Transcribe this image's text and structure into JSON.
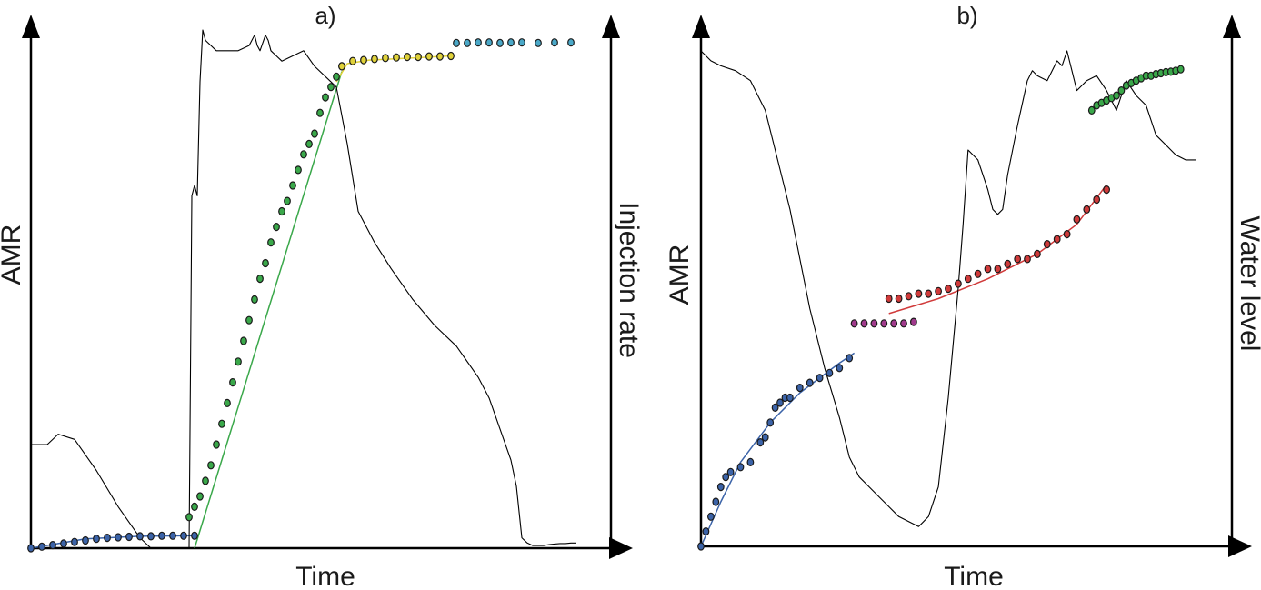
{
  "chart_data": [
    {
      "type": "scatter",
      "title": "a)",
      "xlabel": "Time",
      "ylabel": "AMR",
      "y2label": "Injection rate",
      "xlim": [
        0,
        100
      ],
      "ylim": [
        0,
        100
      ],
      "grid": false,
      "legend": "none",
      "series": [
        {
          "role": "points",
          "color": "#3b63a8",
          "x": [
            0,
            2,
            4,
            6,
            8,
            10,
            12,
            14,
            16,
            18,
            20,
            22,
            24,
            26,
            28,
            30
          ],
          "y": [
            0,
            0.3,
            0.6,
            0.9,
            1.2,
            1.5,
            1.8,
            2.0,
            2.1,
            2.2,
            2.3,
            2.3,
            2.4,
            2.4,
            2.4,
            2.4
          ]
        },
        {
          "role": "fit",
          "color": "#3b63a8",
          "x": [
            0,
            10,
            20,
            30
          ],
          "y": [
            0,
            1.8,
            2.3,
            2.4
          ]
        },
        {
          "role": "points",
          "color": "#3aa84a",
          "x": [
            29,
            30,
            31,
            32,
            33,
            34,
            35,
            36,
            37,
            38,
            39,
            40,
            41,
            42,
            43,
            44,
            45,
            46,
            47,
            48,
            49,
            50,
            51,
            52,
            53,
            54,
            55,
            56,
            57
          ],
          "y": [
            6,
            8,
            10,
            13,
            16,
            20,
            24,
            28,
            32,
            36,
            40,
            44,
            48,
            52,
            55,
            59,
            62,
            65,
            67,
            70,
            73,
            76,
            78,
            80,
            84,
            87,
            89,
            91,
            93
          ]
        },
        {
          "role": "fit",
          "color": "#3aa84a",
          "x": [
            30,
            57
          ],
          "y": [
            0,
            92
          ]
        },
        {
          "role": "points",
          "color": "#e0d23a",
          "x": [
            57,
            59,
            61,
            63,
            65,
            67,
            69,
            71,
            73,
            75,
            77
          ],
          "y": [
            93,
            94,
            94.2,
            94.4,
            94.6,
            94.7,
            94.8,
            94.8,
            94.9,
            94.9,
            95
          ]
        },
        {
          "role": "fit",
          "color": "#e0d23a",
          "x": [
            56,
            58,
            62,
            70,
            77
          ],
          "y": [
            90,
            93.5,
            94.2,
            94.6,
            95
          ]
        },
        {
          "role": "points",
          "color": "#4aa8c8",
          "x": [
            78,
            80,
            82,
            84,
            86,
            88,
            90,
            93,
            96,
            99
          ],
          "y": [
            97.5,
            97.5,
            97.6,
            97.6,
            97.5,
            97.6,
            97.6,
            97.5,
            97.6,
            97.6
          ]
        },
        {
          "role": "line",
          "color": "#000000",
          "x": [
            0,
            3,
            5,
            8,
            12,
            16,
            20,
            22,
            24,
            26,
            28,
            29,
            29.5,
            30,
            30.5,
            31,
            31.5,
            32,
            33,
            34,
            36,
            38,
            40,
            41,
            41.5,
            42,
            43,
            43.5,
            44,
            45,
            46,
            48,
            50,
            52,
            56,
            58,
            60,
            63,
            66,
            70,
            74,
            78,
            82,
            84,
            86,
            88,
            89,
            89.5,
            90,
            91,
            92,
            93,
            94,
            95,
            96,
            97,
            98,
            99,
            100
          ],
          "y": [
            20,
            20,
            22,
            21,
            15,
            8,
            2,
            0,
            0,
            0,
            0,
            0,
            68,
            70,
            68,
            90,
            100,
            98,
            97,
            96,
            96,
            96,
            97,
            99,
            97,
            96,
            99,
            98,
            96,
            95,
            94,
            95,
            96,
            93,
            89,
            78,
            65,
            59,
            54,
            48,
            43,
            39,
            33,
            29,
            23,
            17,
            12,
            7,
            2,
            1,
            0.5,
            0.5,
            0.5,
            0.7,
            0.8,
            0.9,
            0.9,
            1,
            1
          ]
        }
      ]
    },
    {
      "type": "scatter",
      "title": "b)",
      "xlabel": "Time",
      "ylabel": "AMR",
      "y2label": "Water level",
      "xlim": [
        0,
        100
      ],
      "ylim": [
        0,
        100
      ],
      "grid": false,
      "legend": "none",
      "series": [
        {
          "role": "points",
          "color": "#3b63a8",
          "x": [
            0,
            1,
            2,
            3,
            4,
            5,
            6,
            8,
            10,
            12,
            13,
            14,
            15,
            16,
            17,
            18,
            20,
            22,
            24,
            26,
            28,
            30
          ],
          "y": [
            0,
            3,
            6,
            9,
            12,
            14,
            15,
            16,
            17,
            21,
            22,
            25,
            28,
            29,
            30,
            30,
            32,
            33,
            34,
            35,
            36,
            38
          ]
        },
        {
          "role": "fit",
          "color": "#3b63a8",
          "x": [
            0,
            4,
            8,
            14,
            20,
            28,
            31
          ],
          "y": [
            0,
            9,
            17,
            25,
            31,
            37,
            39
          ]
        },
        {
          "role": "points",
          "color": "#a03a8c",
          "x": [
            31,
            33,
            35,
            37,
            39,
            41,
            43
          ],
          "y": [
            45,
            45,
            45,
            45,
            45,
            45,
            45.3
          ]
        },
        {
          "role": "points",
          "color": "#d03a3a",
          "x": [
            38,
            40,
            42,
            44,
            46,
            48,
            50,
            52,
            54,
            56,
            58,
            60,
            62,
            64,
            66,
            68,
            70,
            72,
            74,
            76,
            78,
            80,
            82
          ],
          "y": [
            50,
            50,
            50.5,
            51,
            51,
            51.5,
            52,
            53,
            54,
            55,
            56,
            56,
            57,
            58,
            58,
            59,
            61,
            62,
            63,
            66,
            68,
            70,
            72
          ]
        },
        {
          "role": "fit",
          "color": "#d03a3a",
          "x": [
            38,
            48,
            58,
            68,
            76,
            82
          ],
          "y": [
            47,
            50,
            54,
            59,
            65,
            73
          ]
        },
        {
          "role": "points",
          "color": "#3aa84a",
          "x": [
            79,
            80,
            81,
            82,
            83,
            84,
            85,
            86,
            87,
            88,
            89,
            90,
            91,
            92,
            93,
            94,
            95,
            96,
            97
          ],
          "y": [
            88,
            89,
            89.5,
            90,
            90.5,
            91,
            92,
            93,
            93.5,
            94,
            94.5,
            95,
            95,
            95.3,
            95.5,
            95.7,
            95.8,
            96,
            96.3
          ]
        },
        {
          "role": "line",
          "color": "#000000",
          "x": [
            0,
            2,
            4,
            7,
            10,
            13,
            15,
            18,
            20,
            22,
            25,
            28,
            30,
            32,
            34,
            36,
            38,
            40,
            42,
            44,
            46,
            48,
            50,
            52,
            53,
            54,
            56,
            58,
            59,
            60,
            61,
            62,
            64,
            66,
            67,
            68,
            70,
            72,
            73,
            74,
            75,
            76,
            77,
            78,
            80,
            82,
            84,
            86,
            88,
            90,
            92,
            94,
            96,
            98,
            100
          ],
          "y": [
            100,
            98,
            97,
            96,
            94,
            88,
            80,
            68,
            58,
            48,
            36,
            26,
            18,
            14,
            12,
            10,
            8,
            6,
            5,
            4,
            6,
            12,
            30,
            52,
            65,
            80,
            78,
            72,
            68,
            67,
            68,
            75,
            85,
            94,
            96,
            95,
            94,
            98,
            97,
            100,
            96,
            92,
            93,
            94,
            95,
            92,
            88,
            94,
            91,
            89,
            83,
            81,
            79,
            78,
            78
          ]
        }
      ]
    }
  ]
}
